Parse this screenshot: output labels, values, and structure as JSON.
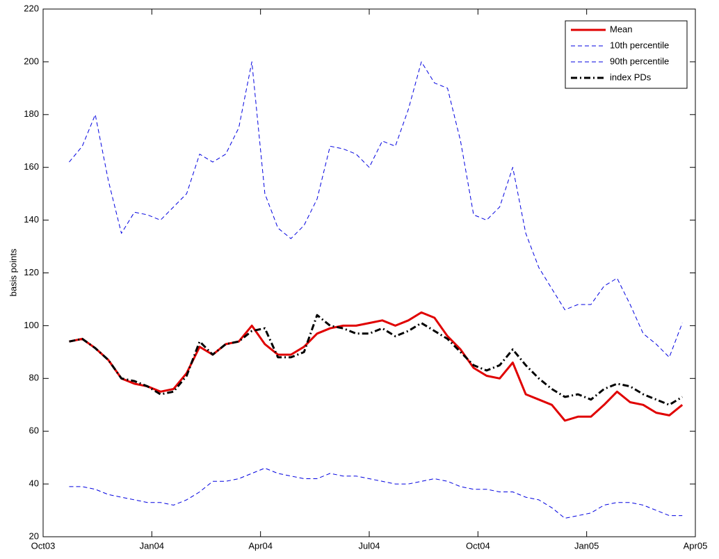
{
  "chart_data": {
    "type": "line",
    "y_label": "basis points",
    "x": [
      2003.81,
      2003.84,
      2003.87,
      2003.9,
      2003.93,
      2003.96,
      2003.99,
      2004.02,
      2004.05,
      2004.08,
      2004.11,
      2004.14,
      2004.17,
      2004.2,
      2004.23,
      2004.26,
      2004.29,
      2004.32,
      2004.35,
      2004.38,
      2004.41,
      2004.44,
      2004.47,
      2004.5,
      2004.53,
      2004.56,
      2004.59,
      2004.62,
      2004.65,
      2004.68,
      2004.71,
      2004.74,
      2004.77,
      2004.8,
      2004.83,
      2004.86,
      2004.89,
      2004.92,
      2004.95,
      2004.98,
      2005.01,
      2005.04,
      2005.07,
      2005.1,
      2005.13,
      2005.16,
      2005.19,
      2005.22
    ],
    "series": [
      {
        "name": "Mean",
        "color": "#e00000",
        "style": "solid",
        "width": 3,
        "values": [
          94,
          95,
          91.5,
          87,
          80,
          78,
          77,
          75,
          76,
          82,
          92,
          89,
          93,
          94,
          100,
          93,
          89,
          89,
          92,
          97,
          99,
          100,
          100,
          101,
          102,
          100,
          102,
          105,
          103,
          96,
          91,
          84,
          81,
          80,
          86,
          74,
          72,
          70,
          64,
          65.5,
          65.5,
          70,
          75,
          71,
          70,
          67,
          66,
          70
        ]
      },
      {
        "name": "10th percentile",
        "color": "#0000e0",
        "style": "dashed",
        "width": 1,
        "values": [
          39,
          39,
          38,
          36,
          35,
          34,
          33,
          33,
          32,
          34,
          37,
          41,
          41,
          42,
          44,
          46,
          44,
          43,
          42,
          42,
          44,
          43,
          43,
          42,
          41,
          40,
          40,
          41,
          42,
          41,
          39,
          38,
          38,
          37,
          37,
          35,
          34,
          31,
          27,
          28,
          29,
          32,
          33,
          33,
          32,
          30,
          28,
          28
        ]
      },
      {
        "name": "90th percentile",
        "color": "#0000e0",
        "style": "dashed",
        "width": 1,
        "values": [
          162,
          168,
          180,
          155,
          135,
          143,
          142,
          140,
          145,
          150,
          165,
          162,
          165,
          175,
          200,
          150,
          137,
          133,
          138,
          148,
          168,
          167,
          165,
          160,
          170,
          168,
          182,
          200,
          192,
          190,
          170,
          142,
          140,
          145,
          160,
          135,
          122,
          114,
          106,
          108,
          108,
          115,
          118,
          108,
          97,
          93,
          88,
          101
        ]
      },
      {
        "name": "index PDs",
        "color": "#000000",
        "style": "dashdot",
        "width": 3,
        "values": [
          94,
          95,
          91.5,
          87,
          80,
          79,
          77,
          74,
          75,
          81,
          94,
          89,
          93,
          94,
          98,
          99,
          88,
          88,
          90,
          104,
          100,
          99,
          97,
          97,
          99,
          96,
          98,
          101,
          98,
          95,
          90,
          85,
          83,
          85,
          91,
          85,
          80,
          76,
          73,
          74,
          72,
          76,
          78,
          77,
          74,
          72,
          70,
          73
        ]
      }
    ],
    "xlim": [
      2003.75,
      2005.25
    ],
    "xticks": [
      {
        "value": 2003.75,
        "label": "Oct03"
      },
      {
        "value": 2004.0,
        "label": "Jan04"
      },
      {
        "value": 2004.25,
        "label": "Apr04"
      },
      {
        "value": 2004.5,
        "label": "Jul04"
      },
      {
        "value": 2004.75,
        "label": "Oct04"
      },
      {
        "value": 2005.0,
        "label": "Jan05"
      },
      {
        "value": 2005.25,
        "label": "Apr05"
      }
    ],
    "ylim": [
      20,
      220
    ],
    "yticks": [
      20,
      40,
      60,
      80,
      100,
      120,
      140,
      160,
      180,
      200,
      220
    ],
    "grid": false,
    "legend": "upper right"
  }
}
